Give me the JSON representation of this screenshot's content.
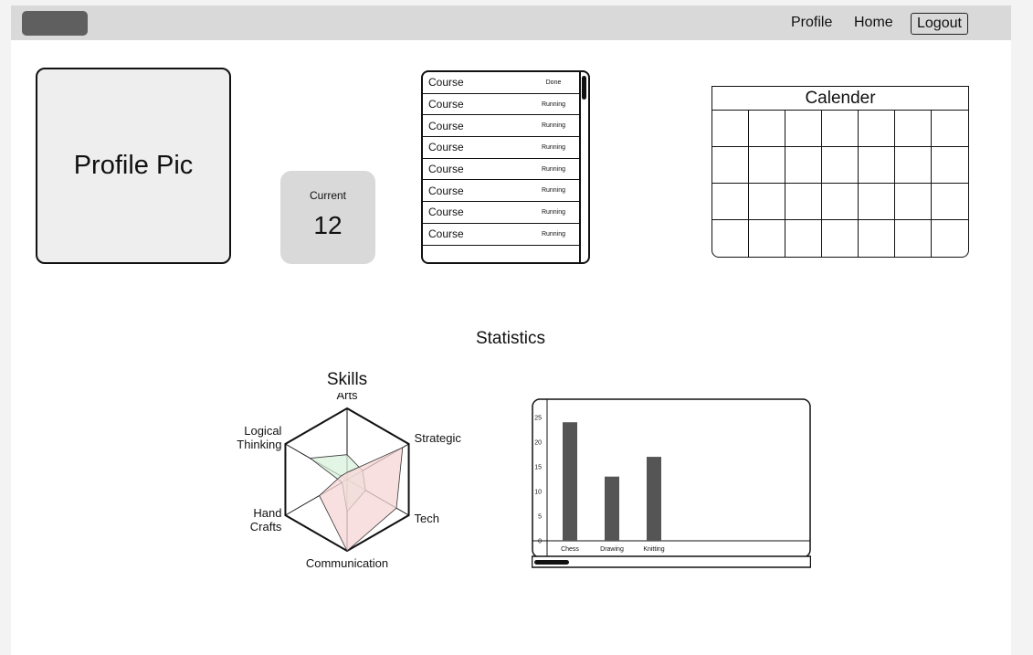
{
  "nav": {
    "profile": "Profile",
    "home": "Home",
    "logout": "Logout"
  },
  "profile_pic": {
    "label": "Profile Pic"
  },
  "current": {
    "label": "Current",
    "value": "12"
  },
  "courses": [
    {
      "name": "Course",
      "status": "Done"
    },
    {
      "name": "Course",
      "status": "Running"
    },
    {
      "name": "Course",
      "status": "Running"
    },
    {
      "name": "Course",
      "status": "Running"
    },
    {
      "name": "Course",
      "status": "Running"
    },
    {
      "name": "Course",
      "status": "Running"
    },
    {
      "name": "Course",
      "status": "Running"
    },
    {
      "name": "Course",
      "status": "Running"
    }
  ],
  "calendar": {
    "title": "Calender",
    "rows": 4,
    "cols": 7
  },
  "statistics": {
    "title": "Statistics"
  },
  "skills": {
    "title": "Skills",
    "axes": [
      "Arts",
      "Strategic",
      "Tech",
      "Communication",
      "Hand Crafts",
      "Logical Thinking"
    ],
    "series": [
      {
        "values": [
          0.35,
          0.25,
          0.3,
          0.45,
          0.08,
          0.6
        ],
        "fill": "#d9f2dc",
        "stroke": "#333333"
      },
      {
        "values": [
          0.1,
          0.9,
          0.8,
          1.0,
          0.45,
          0.1
        ],
        "fill": "#f7d6d6",
        "stroke": "#333333"
      }
    ]
  },
  "chart_data": {
    "type": "bar",
    "categories": [
      "Chess",
      "Drawing",
      "Knitting"
    ],
    "values": [
      24,
      13,
      17
    ],
    "yticks": [
      0,
      5,
      10,
      15,
      20,
      25
    ],
    "ylim": [
      0,
      27
    ],
    "bar_color": "#555555"
  }
}
